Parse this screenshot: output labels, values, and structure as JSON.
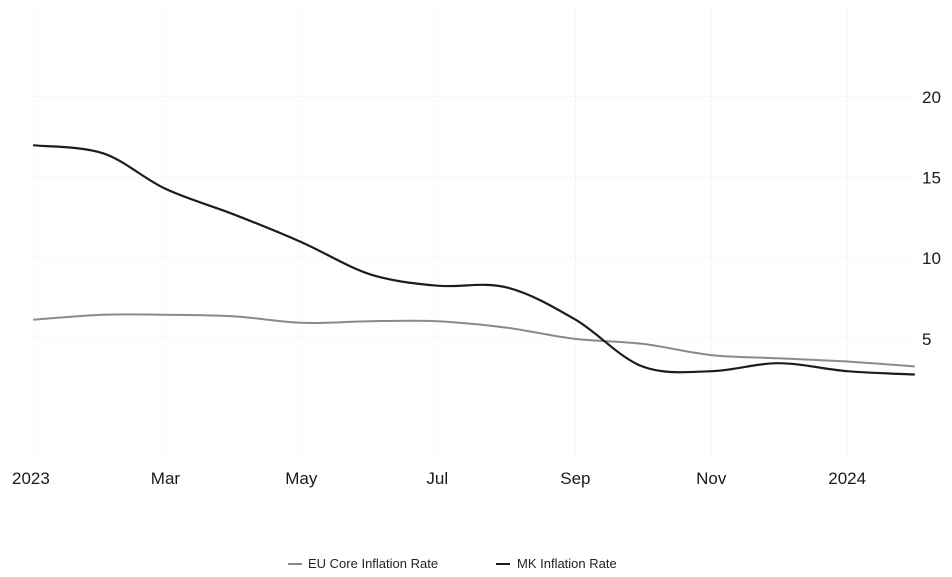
{
  "chart_data": {
    "type": "line",
    "x_ticks": [
      "2023",
      "Mar",
      "May",
      "Jul",
      "Sep",
      "Nov",
      "2024"
    ],
    "y_ticks": [
      5,
      10,
      15,
      20
    ],
    "y_tick_labels": [
      "5",
      "10",
      "15",
      "20"
    ],
    "ylim": [
      -2.5,
      26
    ],
    "x_range": [
      "2023-01-01",
      "2024-01-31"
    ],
    "grid": true,
    "legend_position": "bottom-center",
    "series": [
      {
        "name": "EU Core Inflation Rate",
        "color": "#8a8a8a",
        "points": [
          [
            "2023-01-01",
            6.2
          ],
          [
            "2023-02-01",
            6.5
          ],
          [
            "2023-03-01",
            6.5
          ],
          [
            "2023-04-01",
            6.4
          ],
          [
            "2023-05-01",
            6.0
          ],
          [
            "2023-06-01",
            6.1
          ],
          [
            "2023-07-01",
            6.1
          ],
          [
            "2023-08-01",
            5.7
          ],
          [
            "2023-09-01",
            5.0
          ],
          [
            "2023-10-01",
            4.7
          ],
          [
            "2023-11-01",
            4.0
          ],
          [
            "2023-12-01",
            3.8
          ],
          [
            "2024-01-01",
            3.6
          ],
          [
            "2024-01-31",
            3.3
          ]
        ]
      },
      {
        "name": "MK Inflation Rate",
        "color": "#1c1c1c",
        "points": [
          [
            "2023-01-01",
            17.0
          ],
          [
            "2023-02-01",
            16.5
          ],
          [
            "2023-03-01",
            14.3
          ],
          [
            "2023-04-01",
            12.7
          ],
          [
            "2023-05-01",
            11.0
          ],
          [
            "2023-06-01",
            9.0
          ],
          [
            "2023-07-01",
            8.3
          ],
          [
            "2023-08-01",
            8.2
          ],
          [
            "2023-09-01",
            6.2
          ],
          [
            "2023-10-01",
            3.3
          ],
          [
            "2023-11-01",
            3.0
          ],
          [
            "2023-12-01",
            3.5
          ],
          [
            "2024-01-01",
            3.0
          ],
          [
            "2024-01-31",
            2.8
          ]
        ]
      }
    ]
  }
}
